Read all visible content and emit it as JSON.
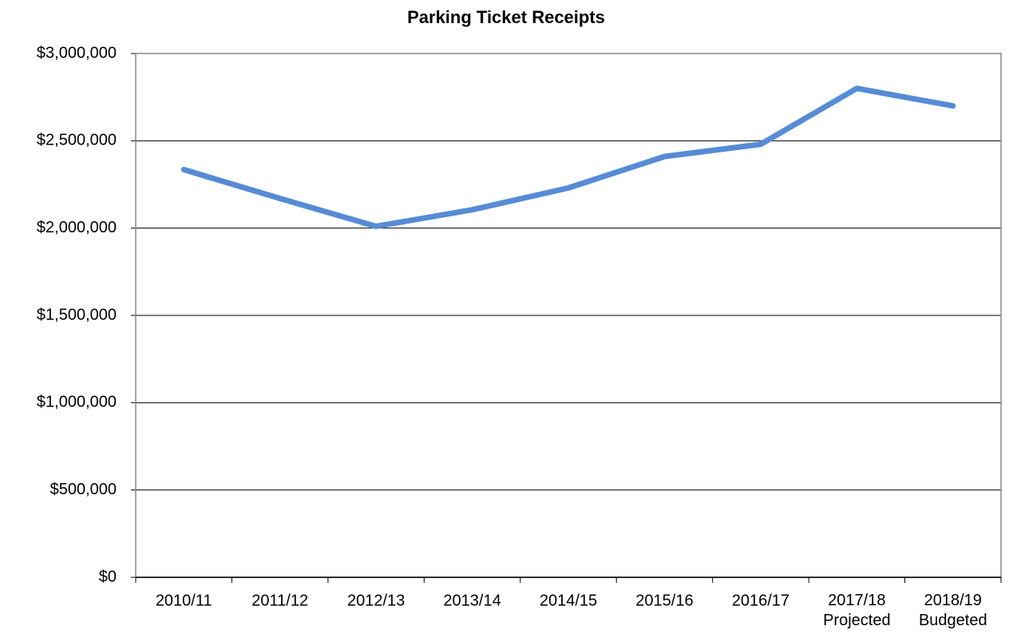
{
  "chart_data": {
    "type": "line",
    "title": "Parking Ticket Receipts",
    "categories": [
      "2010/11",
      "2011/12",
      "2012/13",
      "2013/14",
      "2014/15",
      "2015/16",
      "2016/17",
      "2017/18\nProjected",
      "2018/19\nBudgeted"
    ],
    "series": [
      {
        "name": "Parking Ticket Receipts",
        "color": "#568bd6",
        "values": [
          2335000,
          2170000,
          2010000,
          2105000,
          2230000,
          2410000,
          2480000,
          2800000,
          2700000
        ]
      }
    ],
    "ylim": [
      0,
      3000000
    ],
    "yticks": [
      {
        "value": 0,
        "label": "$0"
      },
      {
        "value": 500000,
        "label": "$500,000"
      },
      {
        "value": 1000000,
        "label": "$1,000,000"
      },
      {
        "value": 1500000,
        "label": "$1,500,000"
      },
      {
        "value": 2000000,
        "label": "$2,000,000"
      },
      {
        "value": 2500000,
        "label": "$2,500,000"
      },
      {
        "value": 3000000,
        "label": "$3,000,000"
      }
    ],
    "grid": true
  }
}
